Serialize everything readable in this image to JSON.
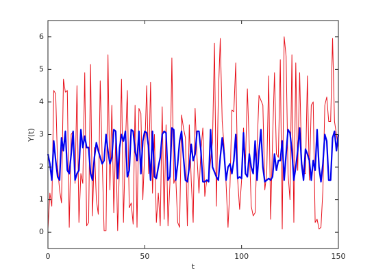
{
  "chart_data": {
    "type": "line",
    "x_label": "t",
    "y_label": "Y(t)",
    "x": [
      0,
      1,
      2,
      3,
      4,
      5,
      6,
      7,
      8,
      9,
      10,
      11,
      12,
      13,
      14,
      15,
      16,
      17,
      18,
      19,
      20,
      21,
      22,
      23,
      24,
      25,
      26,
      27,
      28,
      29,
      30,
      31,
      32,
      33,
      34,
      35,
      36,
      37,
      38,
      39,
      40,
      41,
      42,
      43,
      44,
      45,
      46,
      47,
      48,
      49,
      50,
      51,
      52,
      53,
      54,
      55,
      56,
      57,
      58,
      59,
      60,
      61,
      62,
      63,
      64,
      65,
      66,
      67,
      68,
      69,
      70,
      71,
      72,
      73,
      74,
      75,
      76,
      77,
      78,
      79,
      80,
      81,
      82,
      83,
      84,
      85,
      86,
      87,
      88,
      89,
      90,
      91,
      92,
      93,
      94,
      95,
      96,
      97,
      98,
      99,
      100,
      101,
      102,
      103,
      104,
      105,
      106,
      107,
      108,
      109,
      110,
      111,
      112,
      113,
      114,
      115,
      116,
      117,
      118,
      119,
      120,
      121,
      122,
      123,
      124,
      125,
      126,
      127,
      128,
      129,
      130,
      131,
      132,
      133,
      134,
      135,
      136,
      137,
      138,
      139,
      140,
      141,
      142,
      143,
      144,
      145,
      146,
      147,
      148,
      149,
      150
    ],
    "series": [
      {
        "color": "#e8111b",
        "width": 1,
        "values": [
          0.1,
          1.2,
          0.8,
          4.35,
          4.25,
          2.0,
          1.3,
          0.9,
          4.7,
          4.3,
          4.35,
          0.15,
          3.0,
          3.1,
          1.5,
          4.5,
          0.3,
          1.8,
          1.5,
          4.9,
          0.2,
          0.3,
          5.15,
          0.5,
          2.6,
          1.0,
          0.55,
          4.65,
          2.3,
          0.05,
          0.05,
          5.45,
          1.3,
          3.9,
          0.6,
          2.9,
          0.05,
          2.2,
          4.7,
          0.3,
          2.7,
          4.35,
          0.75,
          0.9,
          0.25,
          3.9,
          0.15,
          3.8,
          3.65,
          1.0,
          2.5,
          4.5,
          1.8,
          4.6,
          1.2,
          3.0,
          0.3,
          1.2,
          0.2,
          3.85,
          0.4,
          3.3,
          0.2,
          1.5,
          5.35,
          1.5,
          1.7,
          0.3,
          0.15,
          3.6,
          3.2,
          2.9,
          0.2,
          3.3,
          1.6,
          0.3,
          3.8,
          2.3,
          1.2,
          2.5,
          3.2,
          1.1,
          1.6,
          1.6,
          2.2,
          2.8,
          5.8,
          0.8,
          4.2,
          5.95,
          3.4,
          2.6,
          1.5,
          0.15,
          1.4,
          3.75,
          3.7,
          5.2,
          1.6,
          0.7,
          1.6,
          3.2,
          2.1,
          4.4,
          2.6,
          0.8,
          0.5,
          0.6,
          2.6,
          4.2,
          4.05,
          3.9,
          1.3,
          1.8,
          4.8,
          0.4,
          2.8,
          4.9,
          2.4,
          2.3,
          5.3,
          0.1,
          6.0,
          5.4,
          1.8,
          1.0,
          5.45,
          0.3,
          5.2,
          1.9,
          4.9,
          2.2,
          1.8,
          1.8,
          4.8,
          1.6,
          3.9,
          4.0,
          0.3,
          0.4,
          0.1,
          0.15,
          1.3,
          3.9,
          4.15,
          3.4,
          3.4,
          5.95,
          3.4,
          3.0,
          2.6
        ]
      },
      {
        "color": "#0000ee",
        "width": 2.2,
        "values": [
          2.4,
          2.1,
          1.6,
          2.8,
          2.2,
          1.7,
          1.6,
          2.9,
          2.5,
          3.1,
          1.9,
          1.8,
          2.4,
          3.1,
          1.6,
          1.8,
          1.9,
          3.15,
          2.6,
          2.95,
          2.6,
          2.6,
          1.8,
          1.6,
          2.3,
          2.75,
          2.5,
          2.3,
          2.1,
          2.2,
          3.0,
          2.5,
          2.1,
          2.3,
          3.15,
          3.1,
          1.65,
          2.6,
          3.0,
          2.8,
          3.1,
          1.7,
          1.9,
          3.15,
          3.1,
          2.5,
          2.2,
          3.1,
          1.8,
          2.8,
          3.1,
          3.05,
          2.6,
          1.6,
          3.1,
          1.7,
          1.65,
          2.0,
          2.3,
          3.0,
          3.1,
          3.05,
          1.6,
          1.7,
          3.2,
          3.15,
          1.6,
          2.1,
          2.8,
          3.1,
          2.3,
          1.6,
          1.55,
          2.0,
          2.7,
          2.2,
          2.4,
          3.1,
          3.1,
          2.5,
          1.55,
          1.55,
          1.6,
          1.55,
          3.15,
          2.0,
          1.85,
          1.7,
          1.6,
          2.3,
          2.9,
          2.4,
          1.6,
          2.0,
          2.1,
          1.8,
          2.2,
          3.0,
          1.65,
          1.7,
          1.65,
          3.05,
          1.8,
          1.7,
          2.4,
          2.0,
          1.8,
          2.8,
          1.6,
          2.5,
          3.15,
          2.0,
          1.55,
          1.6,
          1.65,
          1.6,
          1.7,
          2.4,
          1.9,
          2.2,
          2.2,
          2.8,
          1.6,
          2.4,
          3.15,
          3.05,
          2.5,
          1.6,
          2.0,
          2.5,
          3.2,
          2.1,
          1.6,
          2.55,
          2.4,
          2.2,
          1.6,
          2.2,
          1.9,
          3.15,
          2.0,
          1.55,
          2.1,
          3.0,
          2.8,
          1.6,
          1.6,
          2.9,
          3.1,
          2.5,
          3.0
        ]
      }
    ],
    "xlim": [
      0,
      150
    ],
    "xticks": [
      0,
      50,
      100,
      150
    ],
    "ylim": [
      -0.5,
      6.5
    ],
    "yticks": [
      0,
      1,
      2,
      3,
      4,
      5,
      6
    ],
    "grid": false
  }
}
